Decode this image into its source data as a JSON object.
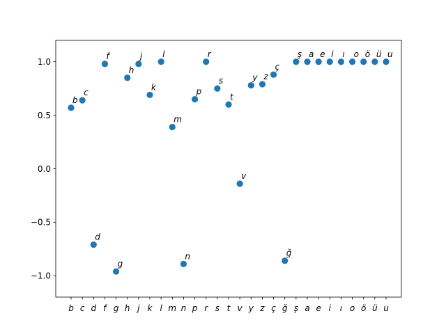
{
  "chart_data": {
    "type": "scatter",
    "categories": [
      "b",
      "c",
      "d",
      "f",
      "g",
      "h",
      "j",
      "k",
      "l",
      "m",
      "n",
      "p",
      "r",
      "s",
      "t",
      "v",
      "y",
      "z",
      "ç",
      "ğ",
      "ş",
      "a",
      "e",
      "i",
      "ı",
      "o",
      "ö",
      "ü",
      "u"
    ],
    "series": [
      {
        "values": [
          0.57,
          0.64,
          -0.71,
          0.98,
          -0.96,
          0.85,
          0.98,
          0.69,
          1.0,
          0.39,
          -0.89,
          0.65,
          1.0,
          0.75,
          0.6,
          -0.14,
          0.78,
          0.79,
          0.88,
          -0.86,
          1.0,
          1.0,
          1.0,
          1.0,
          1.0,
          1.0,
          1.0,
          1.0,
          1.0
        ],
        "labels": [
          "b",
          "c",
          "d",
          "f",
          "g",
          "h",
          "j",
          "k",
          "l",
          "m",
          "n",
          "p",
          "r",
          "s",
          "t",
          "v",
          "y",
          "z",
          "ç",
          "ğ",
          "ş",
          "a",
          "e",
          "i",
          "ı",
          "o",
          "ö",
          "ü",
          "u"
        ],
        "color": "#1f77b4"
      }
    ],
    "ylim": [
      -1.2,
      1.2
    ],
    "yticks": [
      -1.0,
      -0.5,
      0.0,
      0.5,
      1.0
    ],
    "ytick_labels": [
      "−1.0",
      "−0.5",
      "0.0",
      "0.5",
      "1.0"
    ],
    "title": "",
    "xlabel": "",
    "ylabel": "",
    "grid": false
  }
}
